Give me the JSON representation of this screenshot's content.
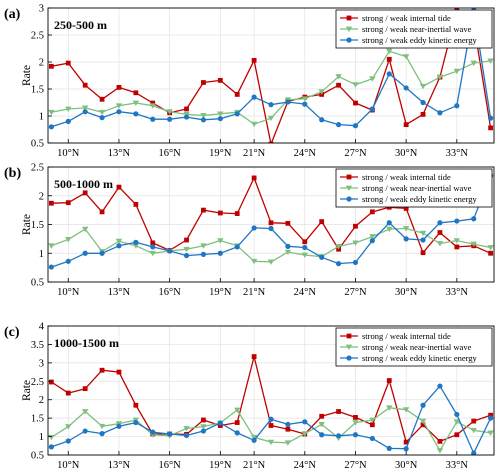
{
  "figure": {
    "colors": {
      "internal_tide": "#c00000",
      "near_inertial": "#7fbf7f",
      "eddy": "#1f77c4",
      "axis": "#000000",
      "grid": "#e2e2e2"
    }
  },
  "chart_data": [
    {
      "type": "line",
      "panel_letter": "(a)",
      "depth_label": "250-500 m",
      "ylabel": "Rate",
      "xlabel": "",
      "xlim": [
        8.8,
        35.2
      ],
      "ylim": [
        0.5,
        3.0
      ],
      "yticks": [
        0.5,
        1,
        1.5,
        2,
        2.5,
        3
      ],
      "xtick_values": [
        10,
        13,
        16,
        19,
        21,
        24,
        27,
        30,
        33
      ],
      "xtick_labels": [
        "10°N",
        "13°N",
        "16°N",
        "19°N",
        "21°N",
        "24°N",
        "27°N",
        "30°N",
        "33°N"
      ],
      "grid": true,
      "legend_position": "top-right",
      "x": [
        9,
        10,
        11,
        12,
        13,
        14,
        15,
        16,
        17,
        18,
        19,
        20,
        21,
        22,
        23,
        24,
        25,
        26,
        27,
        28,
        29,
        30,
        31,
        32,
        33,
        34,
        35
      ],
      "series": [
        {
          "name": "strong / weak internal tide",
          "marker": "square",
          "color_key": "internal_tide",
          "values": [
            1.92,
            1.98,
            1.57,
            1.31,
            1.53,
            1.43,
            1.24,
            1.06,
            1.13,
            1.62,
            1.66,
            1.4,
            2.03,
            0.48,
            1.27,
            1.35,
            1.4,
            1.57,
            1.24,
            1.11,
            2.05,
            0.84,
            1.03,
            1.72,
            2.95,
            2.72,
            0.78
          ]
        },
        {
          "name": "strong / weak near-inertial wave",
          "marker": "triangle-down",
          "color_key": "near_inertial",
          "values": [
            1.07,
            1.13,
            1.15,
            1.07,
            1.19,
            1.24,
            1.19,
            1.08,
            1.03,
            1.01,
            1.04,
            1.07,
            0.85,
            0.96,
            1.3,
            1.32,
            1.45,
            1.73,
            1.58,
            1.69,
            2.2,
            2.1,
            1.55,
            1.72,
            1.83,
            1.98,
            2.02
          ]
        },
        {
          "name": "strong / weak eddy kinetic energy",
          "marker": "circle",
          "color_key": "eddy",
          "values": [
            0.8,
            0.9,
            1.08,
            0.97,
            1.08,
            1.04,
            0.94,
            0.94,
            0.98,
            0.93,
            0.95,
            1.04,
            1.35,
            1.21,
            1.26,
            1.22,
            0.93,
            0.84,
            0.82,
            1.13,
            1.78,
            1.52,
            1.25,
            1.06,
            1.19,
            2.96,
            0.96
          ]
        }
      ]
    },
    {
      "type": "line",
      "panel_letter": "(b)",
      "depth_label": "500-1000 m",
      "ylabel": "Rate",
      "xlabel": "",
      "xlim": [
        8.8,
        35.2
      ],
      "ylim": [
        0.5,
        2.5
      ],
      "yticks": [
        0.5,
        1,
        1.5,
        2,
        2.5
      ],
      "xtick_values": [
        10,
        13,
        16,
        19,
        21,
        24,
        27,
        30,
        33
      ],
      "xtick_labels": [
        "10°N",
        "13°N",
        "16°N",
        "19°N",
        "21°N",
        "24°N",
        "27°N",
        "30°N",
        "33°N"
      ],
      "grid": true,
      "legend_position": "top-right",
      "x": [
        9,
        10,
        11,
        12,
        13,
        14,
        15,
        16,
        17,
        18,
        19,
        20,
        21,
        22,
        23,
        24,
        25,
        26,
        27,
        28,
        29,
        30,
        31,
        32,
        33,
        34,
        35
      ],
      "series": [
        {
          "name": "strong / weak internal tide",
          "marker": "square",
          "color_key": "internal_tide",
          "values": [
            1.87,
            1.88,
            2.05,
            1.72,
            2.15,
            1.85,
            1.18,
            1.05,
            1.23,
            1.75,
            1.7,
            1.69,
            2.31,
            1.53,
            1.52,
            1.2,
            1.55,
            1.07,
            1.47,
            1.72,
            1.8,
            1.78,
            1.01,
            1.36,
            1.11,
            1.13,
            1.0
          ]
        },
        {
          "name": "strong / weak near-inertial wave",
          "marker": "triangle-down",
          "color_key": "near_inertial",
          "values": [
            1.13,
            1.24,
            1.42,
            1.03,
            1.21,
            1.13,
            1.0,
            1.04,
            1.07,
            1.13,
            1.22,
            1.13,
            0.86,
            0.85,
            1.02,
            0.97,
            0.94,
            1.12,
            1.18,
            1.29,
            1.42,
            1.43,
            1.35,
            1.17,
            1.22,
            1.16,
            1.1
          ]
        },
        {
          "name": "strong / weak eddy kinetic energy",
          "marker": "circle",
          "color_key": "eddy",
          "values": [
            0.76,
            0.86,
            1.0,
            1.0,
            1.13,
            1.19,
            1.11,
            1.04,
            0.96,
            0.98,
            1.0,
            1.11,
            1.44,
            1.43,
            1.12,
            1.1,
            0.93,
            0.82,
            0.84,
            1.22,
            1.53,
            1.25,
            1.23,
            1.53,
            1.56,
            1.6,
            2.35
          ]
        }
      ]
    },
    {
      "type": "line",
      "panel_letter": "(c)",
      "depth_label": "1000-1500 m",
      "ylabel": "Rate",
      "xlabel": "",
      "xlim": [
        8.8,
        35.2
      ],
      "ylim": [
        0.5,
        4.0
      ],
      "yticks": [
        0.5,
        1,
        1.5,
        2,
        2.5,
        3,
        3.5,
        4
      ],
      "xtick_values": [
        10,
        13,
        16,
        19,
        21,
        24,
        27,
        30,
        33
      ],
      "xtick_labels": [
        "10°N",
        "13°N",
        "16°N",
        "19°N",
        "21°N",
        "24°N",
        "27°N",
        "30°N",
        "33°N"
      ],
      "grid": true,
      "legend_position": "top-right",
      "x": [
        9,
        10,
        11,
        12,
        13,
        14,
        15,
        16,
        17,
        18,
        19,
        20,
        21,
        22,
        23,
        24,
        25,
        26,
        27,
        28,
        29,
        30,
        31,
        32,
        33,
        34,
        35
      ],
      "series": [
        {
          "name": "strong / weak internal tide",
          "marker": "square",
          "color_key": "internal_tide",
          "values": [
            2.48,
            2.18,
            2.3,
            2.8,
            2.75,
            1.85,
            1.07,
            1.07,
            1.06,
            1.45,
            1.3,
            1.38,
            3.17,
            1.3,
            1.2,
            1.07,
            1.55,
            1.68,
            1.52,
            1.32,
            2.52,
            0.85,
            1.32,
            0.87,
            1.05,
            1.42,
            1.58
          ]
        },
        {
          "name": "strong / weak near-inertial wave",
          "marker": "triangle-down",
          "color_key": "near_inertial",
          "values": [
            0.98,
            1.27,
            1.68,
            1.28,
            1.35,
            1.45,
            1.05,
            1.02,
            1.22,
            1.27,
            1.37,
            1.72,
            0.98,
            0.85,
            0.83,
            1.08,
            1.33,
            0.96,
            1.38,
            1.45,
            1.78,
            1.73,
            1.42,
            0.62,
            1.4,
            1.17,
            1.1
          ]
        },
        {
          "name": "strong / weak eddy kinetic energy",
          "marker": "circle",
          "color_key": "eddy",
          "values": [
            0.72,
            0.88,
            1.15,
            1.08,
            1.28,
            1.38,
            1.12,
            1.07,
            1.03,
            1.15,
            1.37,
            1.1,
            0.9,
            1.47,
            1.33,
            1.4,
            1.05,
            1.02,
            1.05,
            0.95,
            0.68,
            0.67,
            1.85,
            2.37,
            1.6,
            0.55,
            1.5
          ]
        }
      ]
    }
  ]
}
